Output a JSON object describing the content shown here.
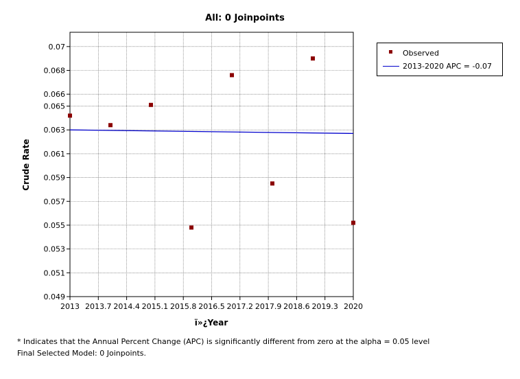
{
  "chart_data": {
    "type": "scatter",
    "title": "All: 0 Joinpoints",
    "xlabel": "ï»¿Year",
    "ylabel": "Crude Rate",
    "xlim": [
      2013,
      2020
    ],
    "ylim": [
      0.049,
      0.0712
    ],
    "grid": true,
    "legend_position": "right",
    "x_tick_values": [
      2013,
      2013.7,
      2014.4,
      2015.1,
      2015.8,
      2016.5,
      2017.2,
      2017.9,
      2018.6,
      2019.3,
      2020
    ],
    "x_tick_labels": [
      "2013",
      "2013.7",
      "2014.4",
      "2015.1",
      "2015.8",
      "2016.5",
      "2017.2",
      "2017.9",
      "2018.6",
      "2019.3",
      "2020"
    ],
    "y_tick_values": [
      0.049,
      0.051,
      0.053,
      0.055,
      0.057,
      0.059,
      0.061,
      0.063,
      0.065,
      0.066,
      0.068,
      0.07
    ],
    "y_tick_labels": [
      "0.049",
      "0.051",
      "0.053",
      "0.055",
      "0.057",
      "0.059",
      "0.061",
      "0.063",
      "0.065",
      "0.066",
      "0.068",
      "0.07"
    ],
    "series": [
      {
        "name": "Observed",
        "kind": "scatter",
        "color": "#8b0000",
        "x": [
          2013,
          2014,
          2015,
          2016,
          2017,
          2018,
          2019,
          2020
        ],
        "y": [
          0.0642,
          0.0634,
          0.0651,
          0.0548,
          0.0676,
          0.0585,
          0.069,
          0.0552
        ]
      },
      {
        "name": "2013-2020 APC  = -0.07",
        "kind": "line",
        "color": "#0000cc",
        "x": [
          2013,
          2020
        ],
        "y": [
          0.063,
          0.0627
        ]
      }
    ]
  },
  "legend": {
    "observed_label": "Observed",
    "fit_label": "2013-2020 APC  = -0.07"
  },
  "footnotes": {
    "line1": "* Indicates that the Annual Percent Change (APC) is significantly different from zero at the alpha = 0.05 level",
    "line2": "Final Selected Model: 0 Joinpoints."
  }
}
